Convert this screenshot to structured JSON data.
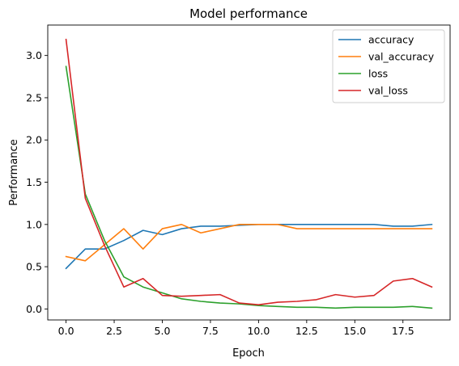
{
  "chart_data": {
    "type": "line",
    "title": "Model performance",
    "xlabel": "Epoch",
    "ylabel": "Performance",
    "xlim": [
      -0.95,
      19.95
    ],
    "ylim": [
      -0.13,
      3.36
    ],
    "xticks": [
      0.0,
      2.5,
      5.0,
      7.5,
      10.0,
      12.5,
      15.0,
      17.5
    ],
    "xtick_labels": [
      "0.0",
      "2.5",
      "5.0",
      "7.5",
      "10.0",
      "12.5",
      "15.0",
      "17.5"
    ],
    "yticks": [
      0.0,
      0.5,
      1.0,
      1.5,
      2.0,
      2.5,
      3.0
    ],
    "ytick_labels": [
      "0.0",
      "0.5",
      "1.0",
      "1.5",
      "2.0",
      "2.5",
      "3.0"
    ],
    "grid": false,
    "legend_position": "top-right",
    "x": [
      0,
      1,
      2,
      3,
      4,
      5,
      6,
      7,
      8,
      9,
      10,
      11,
      12,
      13,
      14,
      15,
      16,
      17,
      18,
      19
    ],
    "series": [
      {
        "name": "accuracy",
        "color": "#1f77b4",
        "values": [
          0.48,
          0.71,
          0.71,
          0.81,
          0.93,
          0.88,
          0.95,
          0.98,
          0.98,
          0.99,
          1.0,
          1.0,
          1.0,
          1.0,
          1.0,
          1.0,
          1.0,
          0.98,
          0.98,
          1.0
        ]
      },
      {
        "name": "val_accuracy",
        "color": "#ff7f0e",
        "values": [
          0.62,
          0.57,
          0.76,
          0.95,
          0.71,
          0.95,
          1.0,
          0.9,
          0.95,
          1.0,
          1.0,
          1.0,
          0.95,
          0.95,
          0.95,
          0.95,
          0.95,
          0.95,
          0.95,
          0.95
        ]
      },
      {
        "name": "loss",
        "color": "#2ca02c",
        "values": [
          2.87,
          1.36,
          0.81,
          0.38,
          0.26,
          0.19,
          0.12,
          0.09,
          0.07,
          0.06,
          0.04,
          0.03,
          0.02,
          0.02,
          0.01,
          0.02,
          0.02,
          0.02,
          0.03,
          0.01
        ]
      },
      {
        "name": "val_loss",
        "color": "#d62728",
        "values": [
          3.19,
          1.31,
          0.75,
          0.26,
          0.36,
          0.16,
          0.15,
          0.16,
          0.17,
          0.07,
          0.05,
          0.08,
          0.09,
          0.11,
          0.17,
          0.14,
          0.16,
          0.33,
          0.36,
          0.26
        ]
      }
    ]
  }
}
